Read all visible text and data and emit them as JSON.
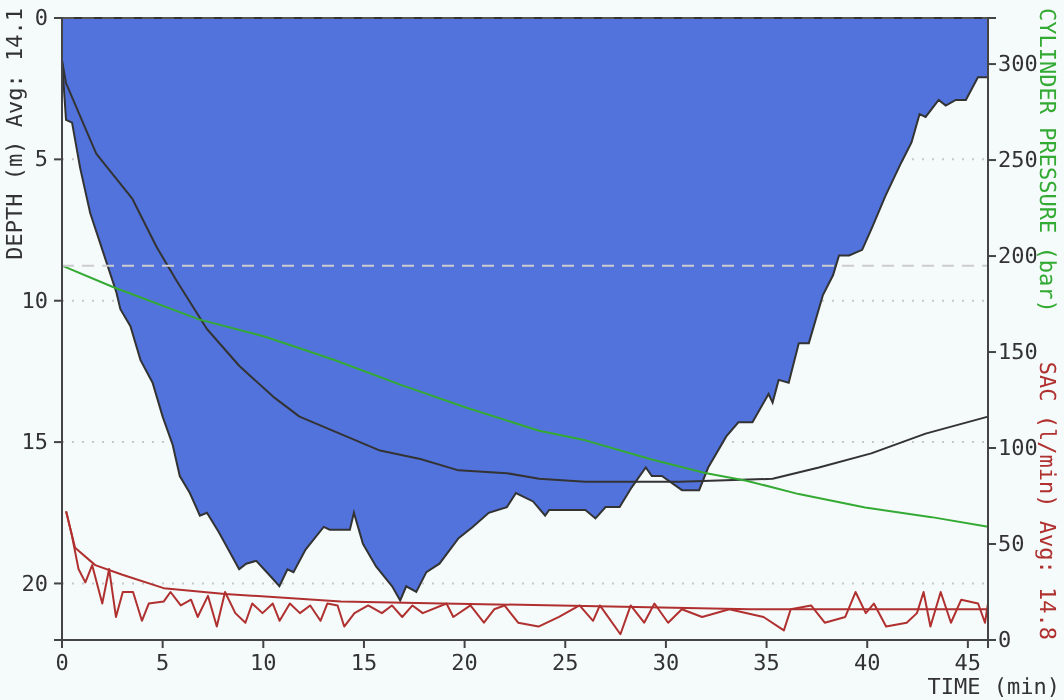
{
  "chart_data": {
    "type": "area",
    "xlabel": "TIME (min)",
    "ylabel": "DEPTH (m) Avg: 14.1",
    "y2label": "CYLINDER PRESSURE (bar)",
    "annotations": [
      "SAC (l/min) Avg: 14.8"
    ],
    "xlim": [
      0,
      46
    ],
    "xticks": [
      0,
      5,
      10,
      15,
      20,
      25,
      30,
      35,
      40,
      45
    ],
    "ylim": [
      22,
      0
    ],
    "yticks": [
      0,
      5,
      10,
      15,
      20
    ],
    "y2lim": [
      0,
      324
    ],
    "y2ticks": [
      0,
      50,
      100,
      150,
      200,
      250,
      300
    ],
    "grid": "y",
    "ref_lines": [
      {
        "axis": "y",
        "value": 0,
        "color": "#555555",
        "line_style": "dashed"
      },
      {
        "axis": "y2",
        "value": 195,
        "color": "#cccccc",
        "line_style": "dashed"
      }
    ],
    "series": [
      {
        "color": "#5273dc",
        "x": [
          0,
          0.2,
          0.5,
          0.9,
          1.4,
          2.05,
          2.7,
          2.9,
          3.4,
          3.9,
          4.5,
          5.0,
          5.5,
          5.85,
          6.35,
          6.85,
          7.2,
          7.8,
          8.8,
          9.15,
          9.65,
          10.3,
          10.8,
          11.2,
          11.5,
          12.1,
          13.0,
          13.3,
          14.3,
          14.5,
          14.95,
          15.6,
          16.4,
          16.8,
          17.1,
          17.6,
          18.1,
          18.75,
          19.7,
          20.4,
          21.2,
          22.1,
          22.55,
          23.4,
          24.0,
          24.2,
          26.0,
          26.5,
          27.0,
          27.7,
          28.3,
          29.0,
          29.3,
          29.8,
          30.8,
          31.65,
          32.1,
          33.0,
          33.6,
          34.3,
          35.1,
          35.3,
          35.6,
          36.1,
          36.6,
          37.1,
          37.8,
          38.3,
          38.6,
          39.1,
          39.75,
          40.25,
          40.9,
          41.7,
          42.2,
          42.6,
          42.9,
          43.55,
          43.9,
          44.4,
          44.9,
          45.5,
          46
        ],
        "values": [
          1.5,
          3.6,
          3.7,
          5.3,
          6.9,
          8.3,
          9.7,
          10.3,
          10.9,
          12.1,
          12.9,
          14.1,
          15.1,
          16.2,
          16.8,
          17.6,
          17.5,
          18.2,
          19.5,
          19.3,
          19.2,
          19.7,
          20.1,
          19.5,
          19.6,
          18.8,
          18.0,
          18.1,
          18.1,
          17.5,
          18.6,
          19.4,
          20.1,
          20.6,
          20.1,
          20.3,
          19.6,
          19.3,
          18.4,
          18.0,
          17.5,
          17.3,
          16.8,
          17.1,
          17.6,
          17.4,
          17.4,
          17.7,
          17.3,
          17.3,
          16.6,
          15.9,
          16.2,
          16.2,
          16.7,
          16.7,
          15.9,
          14.8,
          14.3,
          14.3,
          13.3,
          13.6,
          12.8,
          12.9,
          11.5,
          11.5,
          9.8,
          9.1,
          8.4,
          8.4,
          8.2,
          7.4,
          6.3,
          5.1,
          4.4,
          3.4,
          3.5,
          2.9,
          3.1,
          2.9,
          2.9,
          2.1,
          2.1
        ]
      },
      {
        "type": "line",
        "color": "#333333",
        "x": [
          0,
          0.2,
          1.7,
          3.5,
          4.7,
          5.7,
          7.2,
          8.8,
          10.5,
          11.8,
          13.8,
          15.8,
          17.8,
          19.7,
          22.1,
          23.7,
          26.0,
          30.7,
          35.3,
          37.6,
          40.2,
          42.9,
          46
        ],
        "values": [
          1.5,
          2.3,
          4.8,
          6.4,
          8.1,
          9.3,
          11.0,
          12.3,
          13.4,
          14.1,
          14.7,
          15.3,
          15.6,
          16.0,
          16.1,
          16.3,
          16.4,
          16.4,
          16.3,
          15.9,
          15.4,
          14.7,
          14.1
        ]
      },
      {
        "type": "line",
        "axis": "y2",
        "color": "#33aa33",
        "x": [
          0,
          2.5,
          6.8,
          10.1,
          13.5,
          16.8,
          20.1,
          23.7,
          26.0,
          29.3,
          31.95,
          34.0,
          36.6,
          39.9,
          43.2,
          46
        ],
        "values": [
          195,
          184,
          167,
          158,
          146,
          133,
          121,
          109,
          104,
          94,
          87,
          83,
          76,
          69,
          64,
          59
        ]
      },
      {
        "type": "line",
        "axis": "y2",
        "color": "#b03030",
        "x": [
          0.2,
          0.65,
          1.65,
          3.0,
          5.05,
          8.1,
          13.85,
          18.9,
          24.7,
          34.2,
          46
        ],
        "values": [
          67,
          48,
          39,
          34,
          27,
          24,
          20,
          19,
          18,
          16,
          16
        ]
      },
      {
        "type": "line",
        "axis": "y2",
        "color": "#b03030",
        "x": [
          0.21,
          0.48,
          0.82,
          1.16,
          1.5,
          2.0,
          2.34,
          2.68,
          3.02,
          3.53,
          3.97,
          4.31,
          5.05,
          5.39,
          5.9,
          6.41,
          6.74,
          7.25,
          7.69,
          8.1,
          8.61,
          9.11,
          9.45,
          9.96,
          10.47,
          10.81,
          11.32,
          11.82,
          12.33,
          12.84,
          13.18,
          13.69,
          14.02,
          14.53,
          15.21,
          15.89,
          16.39,
          16.9,
          17.41,
          17.92,
          19.1,
          19.44,
          20.29,
          20.96,
          21.47,
          21.98,
          22.66,
          23.67,
          24.69,
          25.71,
          26.38,
          26.72,
          27.74,
          28.25,
          28.92,
          29.43,
          30.11,
          30.79,
          31.8,
          33.15,
          34.85,
          35.86,
          36.2,
          37.21,
          37.89,
          38.91,
          39.42,
          39.93,
          40.33,
          40.94,
          41.96,
          42.47,
          42.8,
          43.14,
          43.65,
          44.16,
          44.67,
          45.51,
          45.85,
          46
        ],
        "values": [
          67,
          55,
          37,
          30,
          39,
          19,
          37,
          12,
          25,
          25,
          10,
          19,
          20,
          25,
          18,
          21,
          12,
          23,
          7,
          25,
          14,
          9,
          19,
          14,
          19,
          10,
          19,
          14,
          18,
          10,
          19,
          18,
          7,
          14,
          18,
          14,
          18,
          12,
          18,
          14,
          19,
          12,
          18,
          9,
          16,
          18,
          9,
          7,
          12,
          18,
          10,
          18,
          3,
          18,
          9,
          19,
          9,
          16,
          12,
          16,
          12,
          5,
          16,
          18,
          9,
          12,
          25,
          14,
          19,
          7,
          9,
          14,
          25,
          7,
          25,
          9,
          21,
          19,
          9,
          19
        ]
      }
    ]
  }
}
